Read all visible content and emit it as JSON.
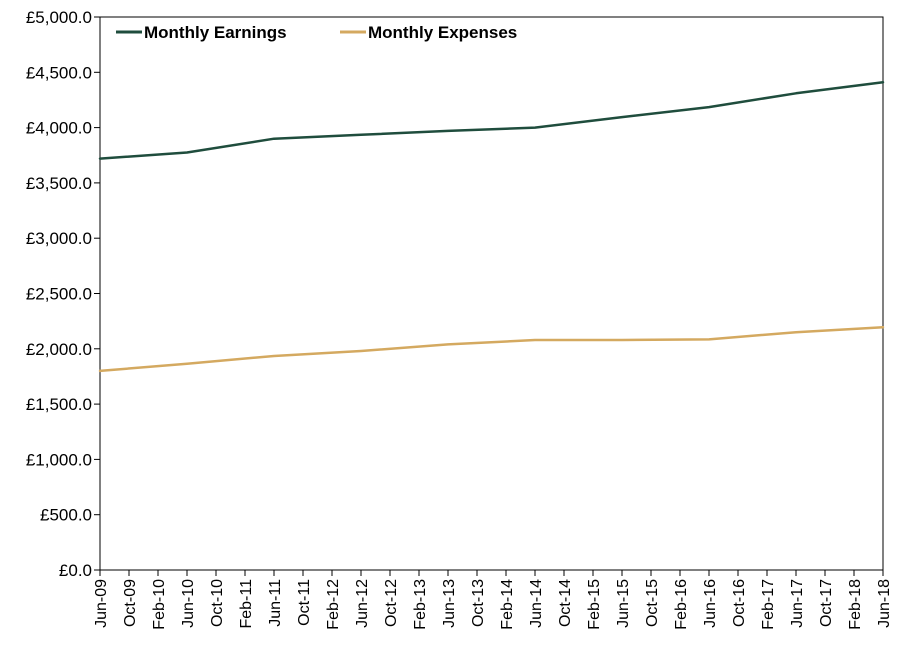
{
  "chart_data": {
    "type": "line",
    "title": "",
    "xlabel": "",
    "ylabel": "",
    "ylim": [
      0,
      5000
    ],
    "y_ticks": [
      "£0.0",
      "£500.0",
      "£1,000.0",
      "£1,500.0",
      "£2,000.0",
      "£2,500.0",
      "£3,000.0",
      "£3,500.0",
      "£4,000.0",
      "£4,500.0",
      "£5,000.0"
    ],
    "y_tick_values": [
      0,
      500,
      1000,
      1500,
      2000,
      2500,
      3000,
      3500,
      4000,
      4500,
      5000
    ],
    "grid": false,
    "legend_position": "top-left",
    "categories": [
      "Jun-09",
      "Oct-09",
      "Feb-10",
      "Jun-10",
      "Oct-10",
      "Feb-11",
      "Jun-11",
      "Oct-11",
      "Feb-12",
      "Jun-12",
      "Oct-12",
      "Feb-13",
      "Jun-13",
      "Oct-13",
      "Feb-14",
      "Jun-14",
      "Oct-14",
      "Feb-15",
      "Jun-15",
      "Oct-15",
      "Feb-16",
      "Jun-16",
      "Oct-16",
      "Feb-17",
      "Jun-17",
      "Oct-17",
      "Feb-18",
      "Jun-18"
    ],
    "x": [
      "Jun-09",
      "Jun-10",
      "Jun-11",
      "Jun-12",
      "Jun-13",
      "Jun-14",
      "Jun-15",
      "Jun-16",
      "Jun-17",
      "Jun-18"
    ],
    "series": [
      {
        "name": "Monthly Earnings",
        "color": "#1f4d3d",
        "values": [
          3720,
          3775,
          3900,
          3935,
          3970,
          4000,
          4095,
          4185,
          4310,
          4410
        ]
      },
      {
        "name": "Monthly Expenses",
        "color": "#d4a960",
        "values": [
          1800,
          1865,
          1935,
          1980,
          2040,
          2080,
          2080,
          2085,
          2150,
          2195
        ]
      }
    ]
  }
}
